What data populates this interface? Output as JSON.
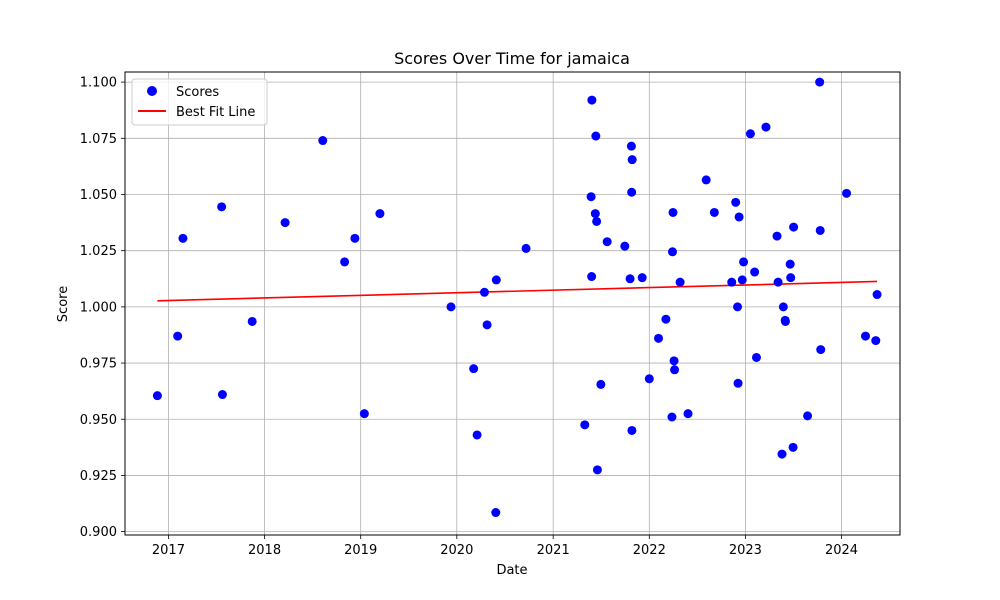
{
  "chart_data": {
    "type": "scatter",
    "title": "Scores Over Time for jamaica",
    "xlabel": "Date",
    "ylabel": "Score",
    "xlim": [
      "2016-07-20",
      "2024-08-10"
    ],
    "ylim": [
      0.8985,
      1.1045
    ],
    "x_ticks": [
      "2017-01-01",
      "2018-01-01",
      "2019-01-01",
      "2020-01-01",
      "2021-01-01",
      "2022-01-01",
      "2023-01-01",
      "2024-01-01"
    ],
    "x_tick_labels": [
      "2017",
      "2018",
      "2019",
      "2020",
      "2021",
      "2022",
      "2023",
      "2024"
    ],
    "y_ticks": [
      0.9,
      0.925,
      0.95,
      0.975,
      1.0,
      1.025,
      1.05,
      1.075,
      1.1
    ],
    "y_tick_labels": [
      "0.900",
      "0.925",
      "0.950",
      "0.975",
      "1.000",
      "1.025",
      "1.050",
      "1.075",
      "1.100"
    ],
    "grid": true,
    "legend_position": "top-left",
    "series": [
      {
        "name": "Scores",
        "kind": "scatter",
        "color": "#0000ff",
        "points": [
          [
            "2016-11-20",
            0.9605
          ],
          [
            "2017-02-05",
            0.987
          ],
          [
            "2017-02-25",
            1.0305
          ],
          [
            "2017-07-22",
            1.0445
          ],
          [
            "2017-07-25",
            0.961
          ],
          [
            "2017-11-15",
            0.9935
          ],
          [
            "2018-03-20",
            1.0375
          ],
          [
            "2018-08-10",
            1.074
          ],
          [
            "2018-11-01",
            1.02
          ],
          [
            "2018-12-10",
            1.0305
          ],
          [
            "2019-01-15",
            0.9525
          ],
          [
            "2019-03-15",
            1.0415
          ],
          [
            "2019-12-10",
            1.0
          ],
          [
            "2020-03-05",
            0.9725
          ],
          [
            "2020-03-18",
            0.943
          ],
          [
            "2020-04-15",
            1.0065
          ],
          [
            "2020-04-25",
            0.992
          ],
          [
            "2020-05-30",
            1.012
          ],
          [
            "2020-05-28",
            0.9085
          ],
          [
            "2020-09-20",
            1.026
          ],
          [
            "2021-05-01",
            0.9475
          ],
          [
            "2021-05-28",
            1.092
          ],
          [
            "2021-05-25",
            1.049
          ],
          [
            "2021-05-27",
            1.0135
          ],
          [
            "2021-06-10",
            1.0415
          ],
          [
            "2021-06-12",
            1.076
          ],
          [
            "2021-06-15",
            1.038
          ],
          [
            "2021-06-18",
            0.9275
          ],
          [
            "2021-07-01",
            0.9655
          ],
          [
            "2021-07-25",
            1.029
          ],
          [
            "2021-09-30",
            1.027
          ],
          [
            "2021-10-20",
            1.0125
          ],
          [
            "2021-10-25",
            1.0715
          ],
          [
            "2021-10-28",
            1.0655
          ],
          [
            "2021-10-26",
            1.051
          ],
          [
            "2021-10-27",
            0.945
          ],
          [
            "2021-12-05",
            1.013
          ],
          [
            "2022-01-01",
            0.968
          ],
          [
            "2022-02-05",
            0.986
          ],
          [
            "2022-03-05",
            0.9945
          ],
          [
            "2022-03-28",
            0.951
          ],
          [
            "2022-03-30",
            1.0245
          ],
          [
            "2022-04-01",
            1.042
          ],
          [
            "2022-04-05",
            0.976
          ],
          [
            "2022-04-07",
            0.972
          ],
          [
            "2022-04-28",
            1.011
          ],
          [
            "2022-05-28",
            0.9525
          ],
          [
            "2022-08-05",
            1.0565
          ],
          [
            "2022-09-05",
            1.042
          ],
          [
            "2022-11-10",
            1.011
          ],
          [
            "2022-11-25",
            1.0465
          ],
          [
            "2022-12-02",
            1.0
          ],
          [
            "2022-12-04",
            0.966
          ],
          [
            "2022-12-08",
            1.04
          ],
          [
            "2022-12-20",
            1.012
          ],
          [
            "2022-12-25",
            1.02
          ],
          [
            "2023-01-20",
            1.077
          ],
          [
            "2023-02-05",
            1.0155
          ],
          [
            "2023-02-12",
            0.9775
          ],
          [
            "2023-03-20",
            1.08
          ],
          [
            "2023-05-01",
            1.0315
          ],
          [
            "2023-05-05",
            1.011
          ],
          [
            "2023-05-20",
            0.9345
          ],
          [
            "2023-05-25",
            1.0
          ],
          [
            "2023-06-01",
            0.994
          ],
          [
            "2023-06-02",
            0.9935
          ],
          [
            "2023-06-20",
            1.019
          ],
          [
            "2023-06-22",
            1.013
          ],
          [
            "2023-07-01",
            0.9375
          ],
          [
            "2023-07-03",
            1.0355
          ],
          [
            "2023-08-25",
            0.9515
          ],
          [
            "2023-10-10",
            1.1
          ],
          [
            "2023-10-12",
            1.034
          ],
          [
            "2023-10-14",
            0.981
          ],
          [
            "2024-01-20",
            1.0505
          ],
          [
            "2024-04-01",
            0.987
          ],
          [
            "2024-05-10",
            0.985
          ],
          [
            "2024-05-15",
            1.0055
          ]
        ]
      },
      {
        "name": "Best Fit Line",
        "kind": "line",
        "color": "#ff0000",
        "points": [
          [
            "2016-11-20",
            1.0027
          ],
          [
            "2024-05-15",
            1.0113
          ]
        ]
      }
    ]
  }
}
